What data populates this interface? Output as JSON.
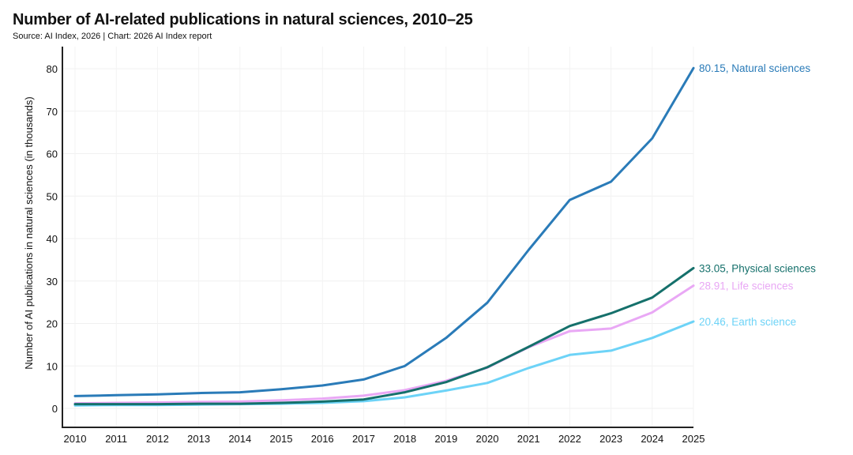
{
  "header": {
    "title": "Number of AI-related publications in natural sciences, 2010–25",
    "subtitle": "Source: AI Index, 2026 | Chart: 2026 AI Index report"
  },
  "chart_data": {
    "type": "line",
    "title": "Number of AI-related publications in natural sciences, 2010–25",
    "subtitle": "Source: AI Index, 2026 | Chart: 2026 AI Index report",
    "xlabel": "",
    "ylabel": "Number of AI publications in natural sciences (in thousands)",
    "x": [
      2010,
      2011,
      2012,
      2013,
      2014,
      2015,
      2016,
      2017,
      2018,
      2019,
      2020,
      2021,
      2022,
      2023,
      2024,
      2025
    ],
    "ylim": [
      -5,
      85
    ],
    "yticks": [
      0,
      10,
      20,
      30,
      40,
      50,
      60,
      70,
      80
    ],
    "grid": true,
    "legend": "direct labels at line ends (right)",
    "series": [
      {
        "name": "Natural sciences",
        "color": "#2a7bb8",
        "end_label": "80.15, Natural sciences",
        "values": [
          2.9,
          3.1,
          3.3,
          3.6,
          3.8,
          4.5,
          5.4,
          6.8,
          10.0,
          16.6,
          24.9,
          37.3,
          49.1,
          53.4,
          63.6,
          80.15
        ]
      },
      {
        "name": "Physical sciences",
        "color": "#15706b",
        "end_label": "33.05, Physical sciences",
        "values": [
          1.0,
          1.0,
          1.0,
          1.1,
          1.1,
          1.3,
          1.6,
          2.1,
          3.8,
          6.2,
          9.7,
          14.5,
          19.4,
          22.4,
          26.1,
          33.05
        ]
      },
      {
        "name": "Life sciences",
        "color": "#e9a8f5",
        "end_label": "28.91, Life sciences",
        "values": [
          1.2,
          1.3,
          1.4,
          1.5,
          1.6,
          1.9,
          2.3,
          3.0,
          4.3,
          6.5,
          9.6,
          14.4,
          18.2,
          18.8,
          22.6,
          28.91
        ]
      },
      {
        "name": "Earth science",
        "color": "#6dd3f7",
        "end_label": "20.46, Earth science",
        "values": [
          0.7,
          0.8,
          0.8,
          0.9,
          1.0,
          1.1,
          1.3,
          1.7,
          2.6,
          4.2,
          6.0,
          9.5,
          12.6,
          13.6,
          16.6,
          20.46
        ]
      }
    ]
  }
}
